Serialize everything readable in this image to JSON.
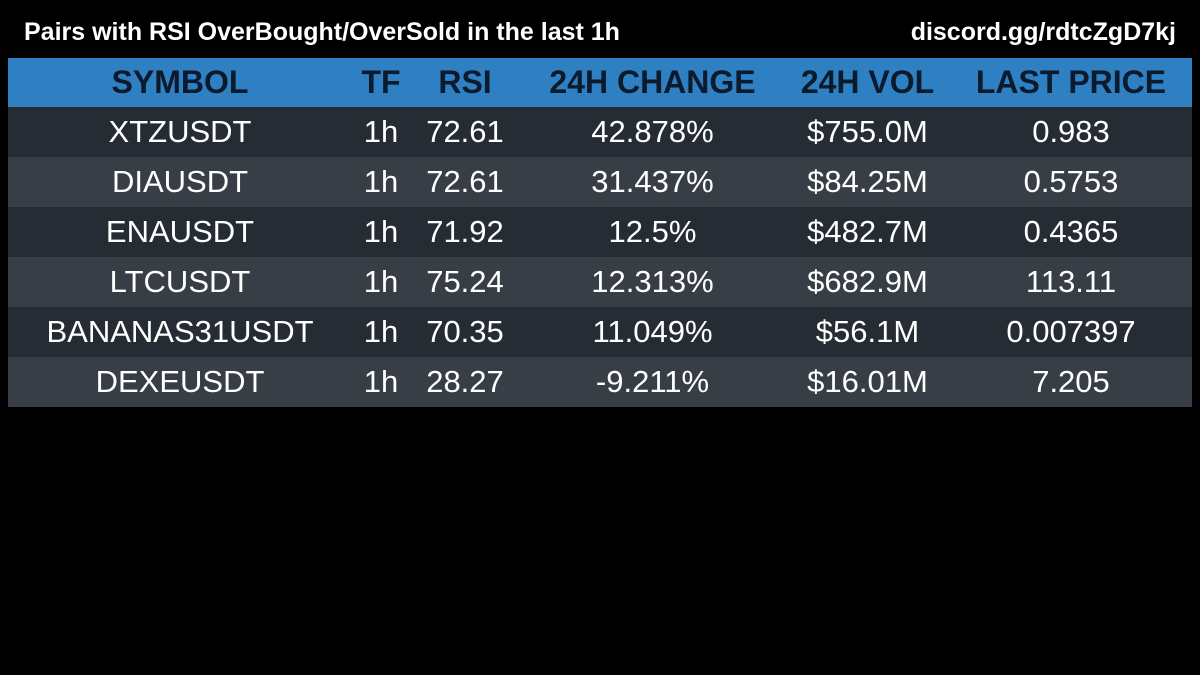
{
  "header": {
    "title": "Pairs with RSI OverBought/OverSold in the last 1h",
    "invite": "discord.gg/rdtcZgD7kj"
  },
  "table": {
    "columns": [
      "SYMBOL",
      "TF",
      "RSI",
      "24H CHANGE",
      "24H VOL",
      "LAST PRICE"
    ],
    "rows": [
      [
        "XTZUSDT",
        "1h",
        "72.61",
        "42.878%",
        "$755.0M",
        "0.983"
      ],
      [
        "DIAUSDT",
        "1h",
        "72.61",
        "31.437%",
        "$84.25M",
        "0.5753"
      ],
      [
        "ENAUSDT",
        "1h",
        "71.92",
        "12.5%",
        "$482.7M",
        "0.4365"
      ],
      [
        "LTCUSDT",
        "1h",
        "75.24",
        "12.313%",
        "$682.9M",
        "113.11"
      ],
      [
        "BANANAS31USDT",
        "1h",
        "70.35",
        "11.049%",
        "$56.1M",
        "0.007397"
      ],
      [
        "DEXEUSDT",
        "1h",
        "28.27",
        "-9.211%",
        "$16.01M",
        "7.205"
      ]
    ]
  },
  "colors": {
    "background": "#000000",
    "header_row": "#2f80c2",
    "row_dark": "#262c33",
    "row_light": "#383e45",
    "text": "#ffffff"
  }
}
